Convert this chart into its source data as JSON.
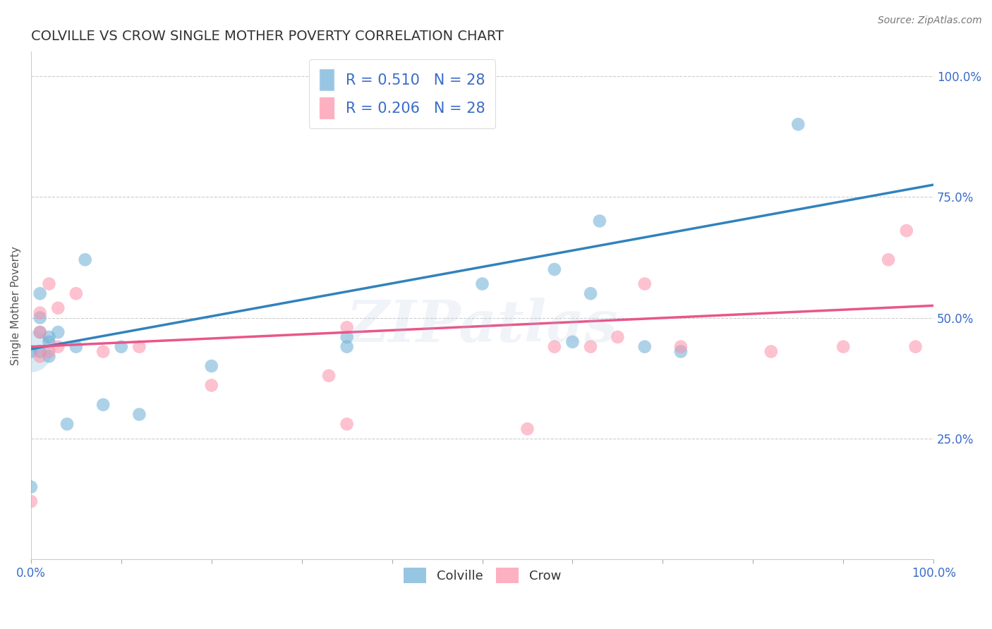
{
  "title": "COLVILLE VS CROW SINGLE MOTHER POVERTY CORRELATION CHART",
  "source": "Source: ZipAtlas.com",
  "xlabel": "",
  "ylabel": "Single Mother Poverty",
  "legend_bottom": [
    "Colville",
    "Crow"
  ],
  "colville_R": 0.51,
  "crow_R": 0.206,
  "N": 28,
  "colville_color": "#6baed6",
  "crow_color": "#fc8fa9",
  "colville_line_color": "#3182bd",
  "crow_line_color": "#e8568a",
  "background_color": "#ffffff",
  "grid_color": "#cccccc",
  "colville_x": [
    0.0,
    0.0,
    0.01,
    0.01,
    0.01,
    0.01,
    0.02,
    0.02,
    0.02,
    0.03,
    0.04,
    0.05,
    0.06,
    0.08,
    0.1,
    0.12,
    0.2,
    0.35,
    0.35,
    0.5,
    0.58,
    0.6,
    0.62,
    0.63,
    0.68,
    0.72,
    0.85
  ],
  "colville_y": [
    0.15,
    0.43,
    0.43,
    0.47,
    0.5,
    0.55,
    0.42,
    0.45,
    0.46,
    0.47,
    0.28,
    0.44,
    0.62,
    0.32,
    0.44,
    0.3,
    0.4,
    0.44,
    0.46,
    0.57,
    0.6,
    0.45,
    0.55,
    0.7,
    0.44,
    0.43,
    0.9
  ],
  "crow_x": [
    0.0,
    0.01,
    0.01,
    0.01,
    0.02,
    0.02,
    0.03,
    0.03,
    0.05,
    0.08,
    0.12,
    0.2,
    0.33,
    0.35,
    0.35,
    0.55,
    0.58,
    0.62,
    0.65,
    0.68,
    0.72,
    0.82,
    0.9,
    0.95,
    0.97,
    0.98
  ],
  "crow_y": [
    0.12,
    0.42,
    0.47,
    0.51,
    0.43,
    0.57,
    0.44,
    0.52,
    0.55,
    0.43,
    0.44,
    0.36,
    0.38,
    0.28,
    0.48,
    0.27,
    0.44,
    0.44,
    0.46,
    0.57,
    0.44,
    0.43,
    0.44,
    0.62,
    0.68,
    0.44
  ],
  "colville_scatter_size": 180,
  "crow_scatter_size": 180,
  "xlim": [
    0.0,
    1.0
  ],
  "ylim": [
    0.0,
    1.05
  ],
  "xtick_positions": [
    0.0,
    0.1,
    0.2,
    0.3,
    0.4,
    0.5,
    0.6,
    0.7,
    0.8,
    0.9,
    1.0
  ],
  "ytick_labels_right": [
    "25.0%",
    "50.0%",
    "75.0%",
    "100.0%"
  ],
  "ytick_positions_right": [
    0.25,
    0.5,
    0.75,
    1.0
  ],
  "watermark": "ZIPatlas",
  "colville_line_x": [
    0.0,
    1.0
  ],
  "colville_line_y": [
    0.435,
    0.775
  ],
  "crow_line_x": [
    0.0,
    1.0
  ],
  "crow_line_y": [
    0.44,
    0.525
  ],
  "cluster_x": [
    0.0
  ],
  "cluster_y": [
    0.43
  ],
  "cluster_size": 1800
}
